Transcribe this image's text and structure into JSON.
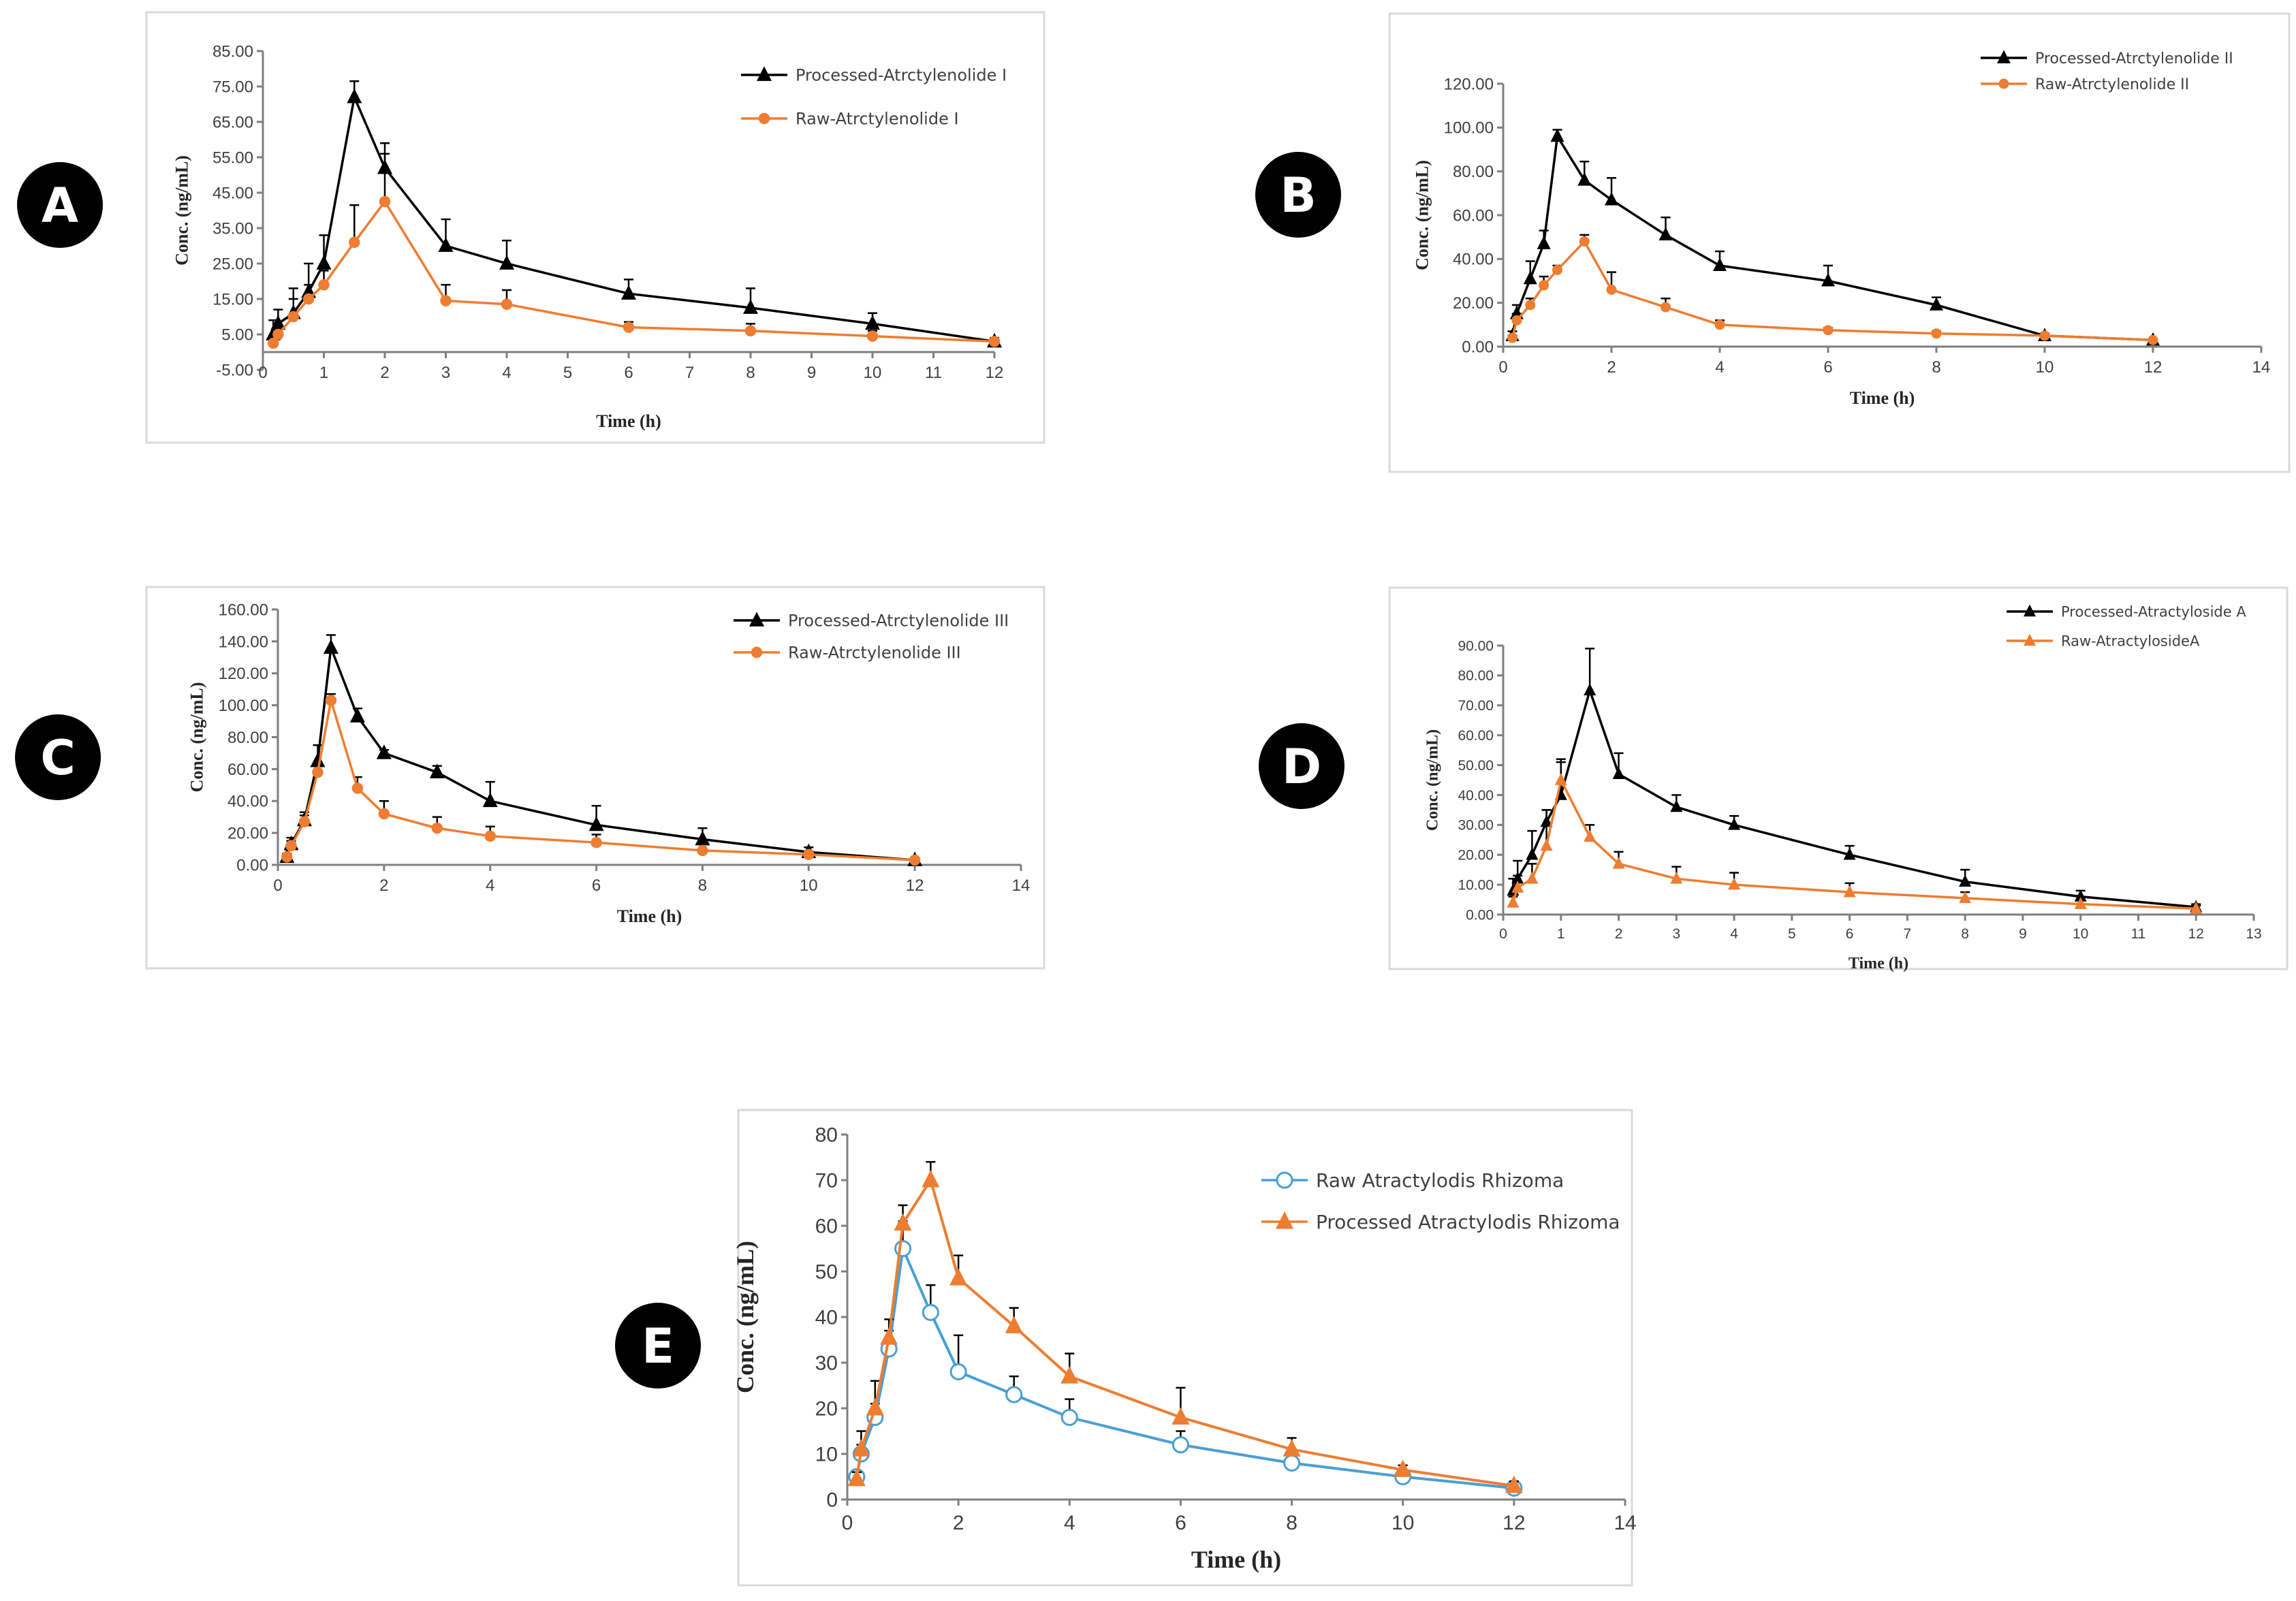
{
  "chart_data": [
    {
      "panel": "A",
      "type": "line",
      "xlabel": "Time (h)",
      "ylabel": "Conc. (ng/mL)",
      "xlim": [
        0,
        12
      ],
      "ylim": [
        -5,
        85
      ],
      "xticks": [
        "0",
        "1",
        "2",
        "3",
        "4",
        "5",
        "6",
        "7",
        "8",
        "9",
        "10",
        "11",
        "12"
      ],
      "yticks": [
        "-5.00",
        "5.00",
        "15.00",
        "25.00",
        "35.00",
        "45.00",
        "55.00",
        "65.00",
        "75.00",
        "85.00"
      ],
      "legend_position": "top-right",
      "colors": {
        "Processed-Atrctylenolide I": "#000000",
        "Raw-Atrctylenolide I": "#ed7d31"
      },
      "series": [
        {
          "name": "Processed-Atrctylenolide I",
          "marker": "triangle",
          "x": [
            0.17,
            0.25,
            0.5,
            0.75,
            1,
            1.5,
            2,
            3,
            4,
            6,
            8,
            10,
            12
          ],
          "y": [
            5,
            8,
            11,
            17,
            25,
            72,
            52,
            30,
            25,
            16.5,
            12.5,
            8,
            3
          ],
          "err": [
            4,
            4,
            7,
            8,
            8,
            4.5,
            7,
            7.5,
            6.5,
            4,
            5.5,
            3,
            1
          ]
        },
        {
          "name": "Raw-Atrctylenolide I",
          "marker": "circle",
          "x": [
            0.17,
            0.25,
            0.5,
            0.75,
            1,
            1.5,
            2,
            3,
            4,
            6,
            8,
            10,
            12
          ],
          "y": [
            2.5,
            5,
            10,
            15,
            19,
            31,
            42.5,
            14.5,
            13.5,
            7,
            6,
            4.5,
            3
          ],
          "err": [
            1.5,
            2,
            5,
            4,
            4,
            10.5,
            13.5,
            4.5,
            4,
            1.5,
            2,
            1.5,
            1
          ]
        }
      ]
    },
    {
      "panel": "B",
      "type": "line",
      "xlabel": "Time (h)",
      "ylabel": "Conc. (ng/mL)",
      "xlim": [
        0,
        14
      ],
      "ylim": [
        0,
        120
      ],
      "xticks": [
        "0",
        "2",
        "4",
        "6",
        "8",
        "10",
        "12",
        "14"
      ],
      "yticks": [
        "0.00",
        "20.00",
        "40.00",
        "60.00",
        "80.00",
        "100.00",
        "120.00"
      ],
      "legend_position": "top-right",
      "colors": {
        "Processed-Atrctylenolide II": "#000000",
        "Raw-Atrctylenolide II": "#ed7d31"
      },
      "series": [
        {
          "name": "Processed-Atrctylenolide II",
          "marker": "triangle",
          "x": [
            0.17,
            0.25,
            0.5,
            0.75,
            1,
            1.5,
            2,
            3,
            4,
            6,
            8,
            10,
            12
          ],
          "y": [
            5,
            15,
            31,
            47,
            96,
            76,
            67,
            51,
            37,
            30,
            19,
            5,
            3
          ],
          "err": [
            2,
            4,
            8,
            6,
            3,
            8.5,
            10,
            8,
            6.5,
            7,
            3.5,
            1,
            0.5
          ]
        },
        {
          "name": "Raw-Atrctylenolide II",
          "marker": "circle",
          "x": [
            0.17,
            0.25,
            0.5,
            0.75,
            1,
            1.5,
            2,
            3,
            4,
            6,
            8,
            10,
            12
          ],
          "y": [
            4,
            12,
            19,
            28,
            35,
            48,
            26,
            18,
            10,
            7.5,
            6,
            5,
            3
          ],
          "err": [
            1,
            3,
            3,
            4,
            2,
            3,
            8,
            4,
            2,
            1,
            1,
            0.8,
            0.5
          ]
        }
      ]
    },
    {
      "panel": "C",
      "type": "line",
      "xlabel": "Time (h)",
      "ylabel": "Conc. (ng/mL)",
      "xlim": [
        0,
        14
      ],
      "ylim": [
        0,
        160
      ],
      "xticks": [
        "0",
        "2",
        "4",
        "6",
        "8",
        "10",
        "12",
        "14"
      ],
      "yticks": [
        "0.00",
        "20.00",
        "40.00",
        "60.00",
        "80.00",
        "100.00",
        "120.00",
        "140.00",
        "160.00"
      ],
      "legend_position": "top-right",
      "colors": {
        "Processed-Atrctylenolide III": "#000000",
        "Raw-Atrctylenolide III": "#ed7d31"
      },
      "series": [
        {
          "name": "Processed-Atrctylenolide III",
          "marker": "triangle",
          "x": [
            0.17,
            0.25,
            0.5,
            0.75,
            1,
            1.5,
            2,
            3,
            4,
            6,
            8,
            10,
            12
          ],
          "y": [
            5,
            13,
            28,
            65,
            136,
            93,
            70,
            58,
            40,
            25,
            16,
            8,
            3
          ],
          "err": [
            2,
            4,
            5,
            10,
            8,
            5,
            2,
            4,
            12,
            12,
            7,
            3,
            1
          ]
        },
        {
          "name": "Raw-Atrctylenolide III",
          "marker": "circle",
          "x": [
            0.17,
            0.25,
            0.5,
            0.75,
            1,
            1.5,
            2,
            3,
            4,
            6,
            8,
            10,
            12
          ],
          "y": [
            5,
            12,
            27,
            58,
            103,
            48,
            32,
            23,
            18,
            14,
            9,
            6.5,
            3
          ],
          "err": [
            2,
            3,
            4,
            6,
            4,
            7,
            8,
            7,
            6,
            5,
            4,
            2,
            1
          ]
        }
      ]
    },
    {
      "panel": "D",
      "type": "line",
      "xlabel": "Time (h)",
      "ylabel": "Conc. (ng/mL)",
      "xlim": [
        0,
        13
      ],
      "ylim": [
        0,
        90
      ],
      "xticks": [
        "0",
        "1",
        "2",
        "3",
        "4",
        "5",
        "6",
        "7",
        "8",
        "9",
        "10",
        "11",
        "12",
        "13"
      ],
      "yticks": [
        "0.00",
        "10.00",
        "20.00",
        "30.00",
        "40.00",
        "50.00",
        "60.00",
        "70.00",
        "80.00",
        "90.00"
      ],
      "legend_position": "top-right",
      "colors": {
        "Processed-Atractyloside A": "#000000",
        "Raw-AtractylosideA": "#ed7d31"
      },
      "series": [
        {
          "name": "Processed-Atractyloside A",
          "marker": "triangle",
          "x": [
            0.17,
            0.25,
            0.5,
            0.75,
            1,
            1.5,
            2,
            3,
            4,
            6,
            8,
            10,
            12
          ],
          "y": [
            8,
            12,
            20,
            31,
            40,
            75,
            47,
            36,
            30,
            20,
            11,
            6,
            2.5
          ],
          "err": [
            4,
            6,
            8,
            4,
            12,
            14,
            7,
            4,
            3,
            3,
            4,
            2,
            1
          ]
        },
        {
          "name": "Raw-AtractylosideA",
          "marker": "triangle",
          "x": [
            0.17,
            0.25,
            0.5,
            0.75,
            1,
            1.5,
            2,
            3,
            4,
            6,
            8,
            10,
            12
          ],
          "y": [
            4,
            9,
            12,
            23,
            45,
            26,
            17,
            12,
            10,
            7.5,
            5.5,
            3.5,
            2
          ],
          "err": [
            2,
            4,
            5,
            12,
            6,
            4,
            4,
            4,
            4,
            3,
            2,
            1.5,
            1
          ]
        }
      ]
    },
    {
      "panel": "E",
      "type": "line",
      "xlabel": "Time (h)",
      "ylabel": "Conc. (ng/mL)",
      "xlim": [
        0,
        14
      ],
      "ylim": [
        0,
        80
      ],
      "xticks": [
        "0",
        "2",
        "4",
        "6",
        "8",
        "10",
        "12",
        "14"
      ],
      "yticks": [
        "0",
        "10",
        "20",
        "30",
        "40",
        "50",
        "60",
        "70",
        "80"
      ],
      "legend_position": "top-right",
      "colors": {
        "Raw Atractylodis Rhizoma": "#4a9fd4",
        "Processed Atractylodis Rhizoma": "#ed7d31"
      },
      "series": [
        {
          "name": "Raw Atractylodis Rhizoma",
          "marker": "open-circle",
          "x": [
            0.17,
            0.25,
            0.5,
            0.75,
            1,
            1.5,
            2,
            3,
            4,
            6,
            8,
            10,
            12
          ],
          "y": [
            5,
            10,
            18,
            33,
            55,
            41,
            28,
            23,
            18,
            12,
            8,
            5,
            2.5
          ],
          "err": [
            1,
            2,
            3,
            4,
            6,
            6,
            8,
            4,
            4,
            3,
            2,
            1,
            0.5
          ]
        },
        {
          "name": "Processed Atractylodis Rhizoma",
          "marker": "triangle",
          "x": [
            0.17,
            0.25,
            0.5,
            0.75,
            1,
            1.5,
            2,
            3,
            4,
            6,
            8,
            10,
            12
          ],
          "y": [
            4.5,
            11,
            20,
            35.5,
            60.5,
            70,
            48.5,
            38,
            27,
            18,
            11,
            6.5,
            3
          ],
          "err": [
            1.5,
            4,
            6,
            4,
            4,
            4,
            5,
            4,
            5,
            6.5,
            2.5,
            1,
            1
          ]
        }
      ]
    }
  ]
}
